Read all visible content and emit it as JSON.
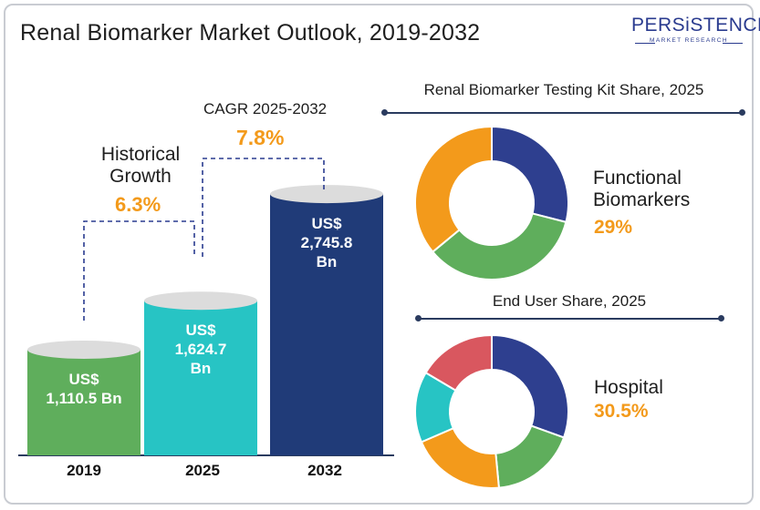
{
  "title": "Renal Biomarker Market Outlook, 2019-2032",
  "logo": {
    "main": "PERSiSTENCE",
    "sub": "MARKET RESEARCH"
  },
  "growth": {
    "historical_label_1": "Historical",
    "historical_label_2": "Growth",
    "historical_value": "6.3%",
    "cagr_label": "CAGR 2025-2032",
    "cagr_value": "7.8%"
  },
  "chart_data": [
    {
      "type": "bar",
      "categories": [
        "2019",
        "2025",
        "2032"
      ],
      "values": [
        1110.5,
        1624.7,
        2745.8
      ],
      "labels": [
        [
          "US$",
          "1,110.5 Bn"
        ],
        [
          "US$",
          "1,624.7",
          "Bn"
        ],
        [
          "US$",
          "2,745.8",
          "Bn"
        ]
      ],
      "colors": [
        "#5fae5c",
        "#27c4c4",
        "#203b78"
      ],
      "top_colors": [
        "#dcdcdc",
        "#dcdcdc",
        "#dcdcdc"
      ]
    },
    {
      "type": "pie",
      "title": "Renal Biomarker Testing Kit Share, 2025",
      "values": [
        29,
        35,
        36
      ],
      "colors": [
        "#2e3f8f",
        "#5fae5c",
        "#f39a1b"
      ],
      "highlight_label_1": "Functional",
      "highlight_label_2": "Biomarkers",
      "highlight_value": "29%"
    },
    {
      "type": "pie",
      "title": "End User Share, 2025",
      "values": [
        30.5,
        18,
        20,
        15,
        16.5
      ],
      "colors": [
        "#2e3f8f",
        "#5fae5c",
        "#f39a1b",
        "#27c4c4",
        "#d9575f"
      ],
      "highlight_label": "Hospital",
      "highlight_value": "30.5%"
    }
  ]
}
